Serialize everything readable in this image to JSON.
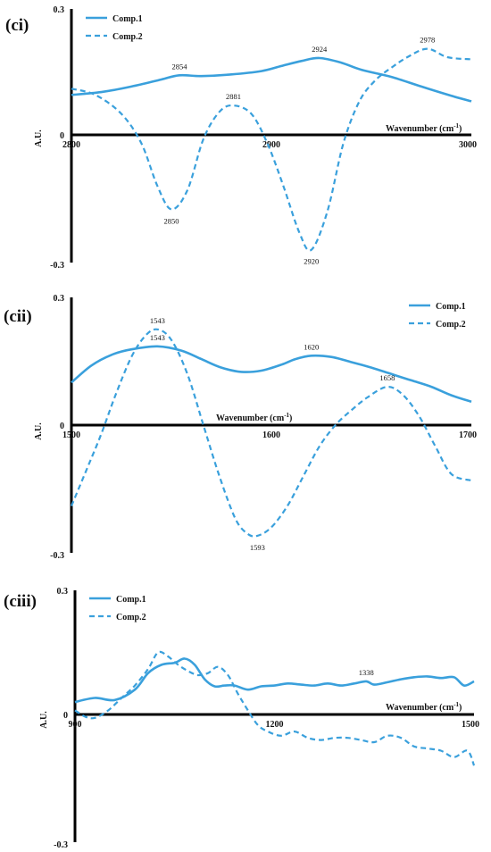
{
  "chart_data": [
    {
      "type": "line",
      "panel_label": "(ci)",
      "xlabel": "Wavenumber",
      "xlabel_unit": "(cm",
      "xlabel_sup": "-1",
      "xlabel_close": ")",
      "ylabel": "A.U.",
      "xlim": [
        2800,
        3000
      ],
      "ylim": [
        -0.3,
        0.3
      ],
      "xticks": [
        "2800",
        "2900",
        "3000"
      ],
      "xtick_values": [
        2800,
        2900,
        3000
      ],
      "yticks": [
        "0.3",
        "0",
        "-0.3"
      ],
      "ytick_values": [
        0.3,
        0,
        -0.3
      ],
      "legend": [
        "Comp.1",
        "Comp.2"
      ],
      "legend_position": "top-left",
      "series": [
        {
          "name": "Comp.1",
          "style": "solid",
          "x": [
            2800,
            2815,
            2830,
            2845,
            2854,
            2865,
            2880,
            2895,
            2905,
            2915,
            2924,
            2935,
            2945,
            2960,
            2975,
            2990,
            3000
          ],
          "y": [
            0.095,
            0.102,
            0.115,
            0.132,
            0.142,
            0.14,
            0.144,
            0.152,
            0.164,
            0.176,
            0.183,
            0.172,
            0.155,
            0.138,
            0.115,
            0.093,
            0.08
          ]
        },
        {
          "name": "Comp.2",
          "style": "dashed",
          "x": [
            2800,
            2812,
            2825,
            2835,
            2843,
            2850,
            2858,
            2866,
            2874,
            2881,
            2890,
            2898,
            2906,
            2914,
            2920,
            2928,
            2936,
            2944,
            2952,
            2960,
            2968,
            2978,
            2988,
            3000
          ],
          "y": [
            0.11,
            0.095,
            0.05,
            -0.02,
            -0.12,
            -0.175,
            -0.13,
            -0.01,
            0.055,
            0.07,
            0.05,
            -0.02,
            -0.12,
            -0.23,
            -0.27,
            -0.18,
            -0.02,
            0.08,
            0.13,
            0.16,
            0.185,
            0.205,
            0.185,
            0.18
          ]
        }
      ],
      "annotations": [
        {
          "text": "2854",
          "x": 2854,
          "y": 0.142,
          "pos": "above"
        },
        {
          "text": "2924",
          "x": 2924,
          "y": 0.183,
          "pos": "above"
        },
        {
          "text": "2881",
          "x": 2881,
          "y": 0.07,
          "pos": "above"
        },
        {
          "text": "2978",
          "x": 2978,
          "y": 0.205,
          "pos": "above"
        },
        {
          "text": "2850",
          "x": 2850,
          "y": -0.175,
          "pos": "below"
        },
        {
          "text": "2920",
          "x": 2920,
          "y": -0.27,
          "pos": "below"
        }
      ]
    },
    {
      "type": "line",
      "panel_label": "(cii)",
      "xlabel": "Wavenumber",
      "xlabel_unit": "(cm",
      "xlabel_sup": "-1",
      "xlabel_close": ")",
      "ylabel": "A.U.",
      "xlim": [
        1500,
        1700
      ],
      "ylim": [
        -0.3,
        0.3
      ],
      "xticks": [
        "1500",
        "1600",
        "1700"
      ],
      "xtick_values": [
        1500,
        1600,
        1700
      ],
      "yticks": [
        "0.3",
        "0",
        "-0.3"
      ],
      "ytick_values": [
        0.3,
        0,
        -0.3
      ],
      "legend": [
        "Comp.1",
        "Comp.2"
      ],
      "legend_position": "top-right",
      "series": [
        {
          "name": "Comp.1",
          "style": "solid",
          "x": [
            1500,
            1510,
            1520,
            1530,
            1543,
            1555,
            1565,
            1575,
            1585,
            1595,
            1605,
            1612,
            1620,
            1630,
            1640,
            1650,
            1660,
            1670,
            1680,
            1690,
            1700
          ],
          "y": [
            0.1,
            0.14,
            0.165,
            0.178,
            0.185,
            0.175,
            0.155,
            0.135,
            0.125,
            0.128,
            0.142,
            0.155,
            0.163,
            0.16,
            0.148,
            0.135,
            0.12,
            0.105,
            0.09,
            0.07,
            0.055
          ]
        },
        {
          "name": "Comp.2",
          "style": "dashed",
          "x": [
            1500,
            1508,
            1515,
            1522,
            1530,
            1537,
            1543,
            1550,
            1558,
            1566,
            1574,
            1582,
            1588,
            1593,
            1600,
            1608,
            1616,
            1624,
            1632,
            1640,
            1648,
            1658,
            1666,
            1674,
            1682,
            1690,
            1700
          ],
          "y": [
            -0.19,
            -0.1,
            -0.02,
            0.07,
            0.16,
            0.21,
            0.225,
            0.2,
            0.12,
            0.0,
            -0.12,
            -0.22,
            -0.255,
            -0.26,
            -0.24,
            -0.19,
            -0.12,
            -0.05,
            0.0,
            0.035,
            0.065,
            0.09,
            0.07,
            0.02,
            -0.05,
            -0.115,
            -0.13
          ]
        }
      ],
      "annotations": [
        {
          "text": "1543",
          "x": 1543,
          "y": 0.225,
          "pos": "above"
        },
        {
          "text": "1543",
          "x": 1543,
          "y": 0.185,
          "pos": "above"
        },
        {
          "text": "1620",
          "x": 1620,
          "y": 0.163,
          "pos": "above"
        },
        {
          "text": "1658",
          "x": 1658,
          "y": 0.09,
          "pos": "above"
        },
        {
          "text": "1593",
          "x": 1593,
          "y": -0.26,
          "pos": "below"
        }
      ]
    },
    {
      "type": "line",
      "panel_label": "(ciii)",
      "xlabel": "Wavenumber",
      "xlabel_unit": "(cm",
      "xlabel_sup": "-1",
      "xlabel_close": ")",
      "ylabel": "A.U.",
      "xlim": [
        900,
        1500
      ],
      "ylim": [
        -0.3,
        0.3
      ],
      "xticks": [
        "900",
        "1200",
        "1500"
      ],
      "xtick_values": [
        900,
        1200,
        1500
      ],
      "yticks": [
        "0.3",
        "0",
        "-0.3"
      ],
      "ytick_values": [
        0.3,
        0,
        -0.3
      ],
      "legend": [
        "Comp.1",
        "Comp.2"
      ],
      "legend_position": "top-left",
      "series": [
        {
          "name": "Comp.1",
          "style": "solid",
          "x": [
            900,
            930,
            960,
            990,
            1010,
            1030,
            1050,
            1065,
            1080,
            1095,
            1110,
            1125,
            1140,
            1160,
            1180,
            1200,
            1220,
            1240,
            1260,
            1280,
            1300,
            1320,
            1338,
            1350,
            1370,
            1390,
            1410,
            1430,
            1450,
            1470,
            1485,
            1500
          ],
          "y": [
            0.03,
            0.04,
            0.035,
            0.06,
            0.1,
            0.12,
            0.125,
            0.135,
            0.12,
            0.085,
            0.068,
            0.07,
            0.07,
            0.06,
            0.068,
            0.07,
            0.075,
            0.072,
            0.07,
            0.075,
            0.07,
            0.075,
            0.08,
            0.072,
            0.078,
            0.085,
            0.09,
            0.092,
            0.088,
            0.09,
            0.07,
            0.08
          ]
        },
        {
          "name": "Comp.2",
          "style": "dashed",
          "x": [
            900,
            915,
            930,
            950,
            970,
            990,
            1010,
            1025,
            1040,
            1055,
            1070,
            1085,
            1100,
            1115,
            1130,
            1145,
            1160,
            1175,
            1190,
            1210,
            1230,
            1250,
            1270,
            1290,
            1310,
            1330,
            1350,
            1370,
            1390,
            1410,
            1430,
            1450,
            1470,
            1490,
            1500
          ],
          "y": [
            0.01,
            -0.005,
            -0.008,
            0.01,
            0.04,
            0.07,
            0.11,
            0.15,
            0.14,
            0.12,
            0.105,
            0.095,
            0.1,
            0.115,
            0.095,
            0.05,
            0.01,
            -0.025,
            -0.04,
            -0.05,
            -0.04,
            -0.055,
            -0.06,
            -0.055,
            -0.055,
            -0.06,
            -0.065,
            -0.05,
            -0.055,
            -0.075,
            -0.08,
            -0.085,
            -0.1,
            -0.085,
            -0.12
          ]
        }
      ],
      "annotations": [
        {
          "text": "1338",
          "x": 1338,
          "y": 0.08,
          "pos": "above"
        }
      ]
    }
  ]
}
